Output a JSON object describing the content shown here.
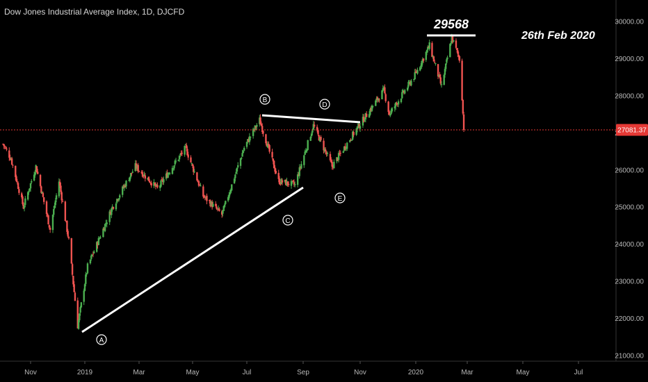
{
  "header": {
    "title": "Dow Jones Industrial Average Index, 1D, DJCFD"
  },
  "colors": {
    "bullish": "#4caf50",
    "bearish": "#ef5350",
    "price_line": "#e53935",
    "background": "#000000",
    "text": "#b8b8b8",
    "annotation": "#ffffff"
  },
  "price_label": "27081.37",
  "chart_data": {
    "type": "candlestick",
    "title": "Dow Jones Industrial Average Index, 1D, DJCFD",
    "x_tick_labels": [
      "Nov",
      "2019",
      "Mar",
      "May",
      "Jul",
      "Sep",
      "Nov",
      "2020",
      "Mar",
      "May",
      "Jul"
    ],
    "y_tick_labels": [
      "21000.00",
      "22000.00",
      "23000.00",
      "24000.00",
      "25000.00",
      "26000.00",
      "27000.00",
      "28000.00",
      "29000.00",
      "30000.00"
    ],
    "ylim": [
      21000,
      30400
    ],
    "current_price": 27081.37,
    "approx_path": [
      {
        "date": "2018-10-01",
        "value": 26700
      },
      {
        "date": "2018-10-10",
        "value": 26300
      },
      {
        "date": "2018-10-24",
        "value": 25000
      },
      {
        "date": "2018-11-07",
        "value": 26100
      },
      {
        "date": "2018-11-23",
        "value": 24400
      },
      {
        "date": "2018-12-03",
        "value": 25700
      },
      {
        "date": "2018-12-14",
        "value": 24100
      },
      {
        "date": "2018-12-24",
        "value": 21800
      },
      {
        "date": "2019-01-04",
        "value": 23400
      },
      {
        "date": "2019-01-31",
        "value": 25000
      },
      {
        "date": "2019-02-25",
        "value": 26100
      },
      {
        "date": "2019-03-22",
        "value": 25500
      },
      {
        "date": "2019-04-23",
        "value": 26600
      },
      {
        "date": "2019-05-13",
        "value": 25300
      },
      {
        "date": "2019-06-03",
        "value": 24800
      },
      {
        "date": "2019-06-28",
        "value": 26600
      },
      {
        "date": "2019-07-15",
        "value": 27350
      },
      {
        "date": "2019-08-05",
        "value": 25700
      },
      {
        "date": "2019-08-23",
        "value": 25600
      },
      {
        "date": "2019-09-12",
        "value": 27200
      },
      {
        "date": "2019-10-02",
        "value": 26100
      },
      {
        "date": "2019-10-28",
        "value": 27100
      },
      {
        "date": "2019-11-27",
        "value": 28150
      },
      {
        "date": "2019-12-03",
        "value": 27500
      },
      {
        "date": "2019-12-31",
        "value": 28550
      },
      {
        "date": "2020-01-17",
        "value": 29350
      },
      {
        "date": "2020-01-31",
        "value": 28250
      },
      {
        "date": "2020-02-12",
        "value": 29568
      },
      {
        "date": "2020-02-21",
        "value": 28990
      },
      {
        "date": "2020-02-24",
        "value": 27960
      },
      {
        "date": "2020-02-26",
        "value": 27081.37
      }
    ],
    "annotations": {
      "peak_label": "29568",
      "date_label": "26th Feb 2020",
      "wave_labels": [
        "A",
        "B",
        "C",
        "D",
        "E"
      ]
    }
  }
}
